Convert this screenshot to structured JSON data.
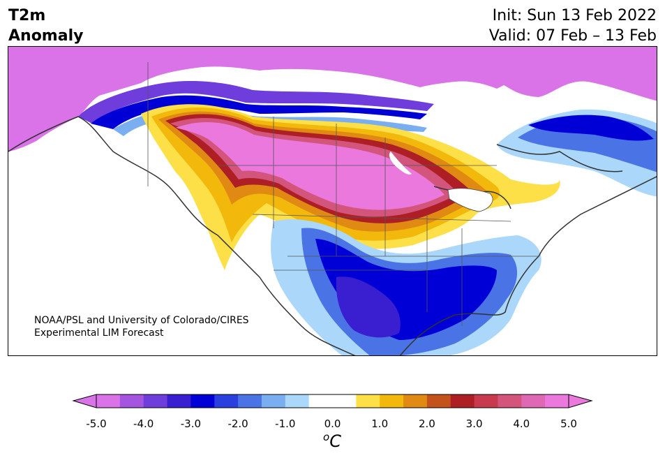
{
  "title": {
    "left_line1": "T2m",
    "left_line2": "Anomaly",
    "init": "Init: Sun 13 Feb 2022",
    "valid": "Valid: 07 Feb – 13 Feb"
  },
  "credit": {
    "line1": "NOAA/PSL and University of Colorado/CIRES",
    "line2": "Experimental LIM Forecast"
  },
  "colorbar": {
    "colors": [
      "#da72e8",
      "#a455e0",
      "#6e3ddc",
      "#3a1fd1",
      "#0000d6",
      "#2a3fdd",
      "#4a74e6",
      "#79aef0",
      "#aad7fa",
      "#ffffff",
      "#ffffff",
      "#fde047",
      "#f2b80c",
      "#e08a14",
      "#c4521b",
      "#ad1f25",
      "#c83b4f",
      "#d4557c",
      "#df68b4",
      "#eb78dc"
    ],
    "low_extend": "#da72e8",
    "high_extend": "#eb78dc",
    "ticks": [
      "-5.0",
      "-4.0",
      "-3.0",
      "-2.0",
      "-1.0",
      "0.0",
      "1.0",
      "2.0",
      "3.0",
      "4.0",
      "5.0"
    ],
    "unit_base": "C",
    "unit_sup": "o"
  }
}
